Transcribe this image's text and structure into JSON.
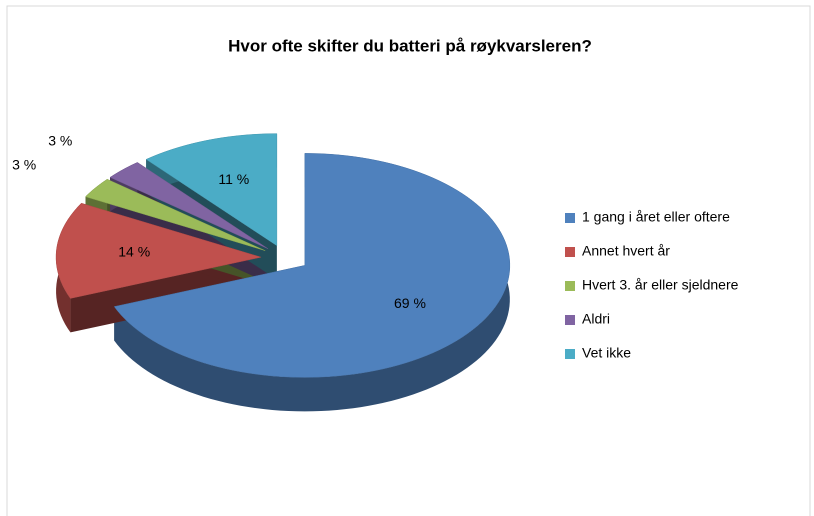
{
  "chart_data": {
    "type": "pie",
    "title": "Hvor ofte skifter du batteri på røykvarsleren?",
    "categories": [
      "1 gang i året eller oftere",
      "Annet hvert år",
      "Hvert 3. år eller sjeldnere",
      "Aldri",
      "Vet ikke"
    ],
    "values": [
      69,
      14,
      3,
      3,
      11
    ],
    "value_labels": [
      "69 %",
      "14 %",
      "3 %",
      "3 %",
      "11 %"
    ],
    "colors": [
      "#4f81bd",
      "#c0504d",
      "#9bbb59",
      "#8064a2",
      "#4bacc6"
    ],
    "legend": "right"
  }
}
